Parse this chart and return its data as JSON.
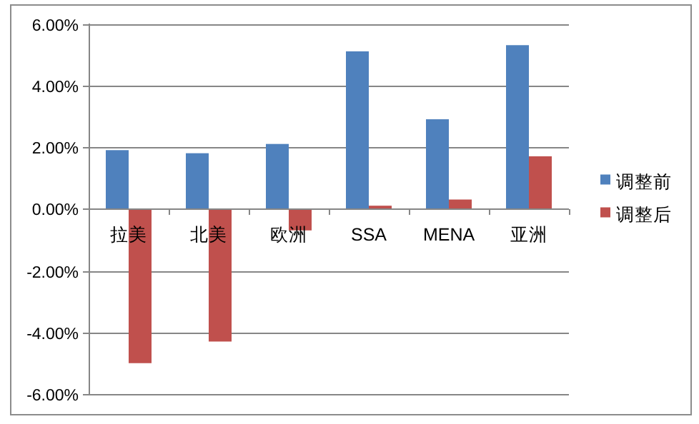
{
  "chart_data": {
    "type": "bar",
    "categories": [
      "拉美",
      "北美",
      "欧洲",
      "SSA",
      "MENA",
      "亚洲"
    ],
    "series": [
      {
        "name": "调整前",
        "color": "#4f81bd",
        "values": [
          1.9,
          1.8,
          2.1,
          5.1,
          2.9,
          5.3
        ]
      },
      {
        "name": "调整后",
        "color": "#c0504d",
        "values": [
          -5.0,
          -4.3,
          -0.7,
          0.1,
          0.3,
          1.7
        ]
      }
    ],
    "ylim": [
      -6,
      6
    ],
    "yticks": [
      {
        "value": -6,
        "label": "-6.00%"
      },
      {
        "value": -4,
        "label": "-4.00%"
      },
      {
        "value": -2,
        "label": "-2.00%"
      },
      {
        "value": 0,
        "label": "0.00%"
      },
      {
        "value": 2,
        "label": "2.00%"
      },
      {
        "value": 4,
        "label": "4.00%"
      },
      {
        "value": 6,
        "label": "6.00%"
      }
    ],
    "grid": "y",
    "legend": "right"
  }
}
